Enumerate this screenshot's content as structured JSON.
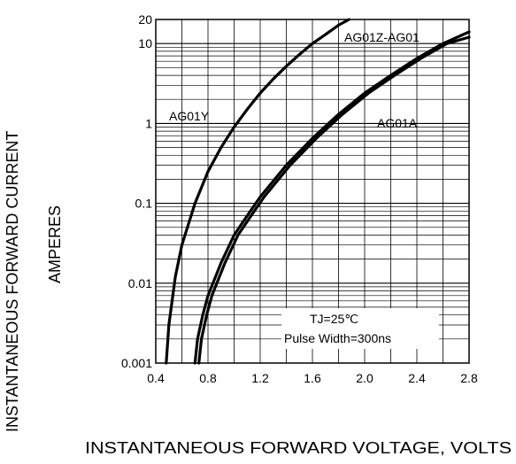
{
  "chart_data": {
    "type": "line",
    "title": "",
    "xlabel": "INSTANTANEOUS FORWARD VOLTAGE,  VOLTS",
    "ylabel": "INSTANTANEOUS FORWARD CURRENT",
    "ylabel2": "AMPERES",
    "xlim": [
      0.4,
      2.8
    ],
    "ylim": [
      0.001,
      20
    ],
    "yscale": "log",
    "grid": true,
    "xticks": [
      "0.4",
      "0.8",
      "1.2",
      "1.6",
      "2.0",
      "2.4",
      "2.8"
    ],
    "yticks": [
      "0.001",
      "0.01",
      "0.1",
      "1",
      "10",
      "20"
    ],
    "series": [
      {
        "name": "AG01Y",
        "x": [
          0.48,
          0.5,
          0.55,
          0.6,
          0.7,
          0.8,
          0.9,
          1.0,
          1.1,
          1.2,
          1.3,
          1.4,
          1.5,
          1.6,
          1.7,
          1.8,
          1.88
        ],
        "y": [
          0.001,
          0.003,
          0.012,
          0.03,
          0.1,
          0.25,
          0.5,
          0.9,
          1.5,
          2.4,
          3.6,
          5.2,
          7.3,
          10,
          13,
          17,
          20
        ]
      },
      {
        "name": "AG01Z-AG01",
        "x": [
          0.7,
          0.72,
          0.76,
          0.8,
          0.9,
          1.0,
          1.1,
          1.2,
          1.4,
          1.6,
          1.8,
          2.0,
          2.2,
          2.4,
          2.6,
          2.8
        ],
        "y": [
          0.001,
          0.002,
          0.004,
          0.007,
          0.018,
          0.04,
          0.07,
          0.12,
          0.3,
          0.65,
          1.3,
          2.4,
          4.0,
          6.5,
          10,
          14
        ]
      },
      {
        "name": "AG01A",
        "x": [
          0.73,
          0.75,
          0.79,
          0.83,
          0.93,
          1.03,
          1.13,
          1.23,
          1.43,
          1.63,
          1.83,
          2.03,
          2.23,
          2.43,
          2.63,
          2.8
        ],
        "y": [
          0.001,
          0.002,
          0.004,
          0.007,
          0.018,
          0.04,
          0.07,
          0.12,
          0.3,
          0.65,
          1.3,
          2.4,
          4.0,
          6.5,
          10,
          12
        ]
      }
    ],
    "annotations": [
      "AG01Y",
      "AG01Z-AG01",
      "AG01A",
      "TJ=25℃",
      "Pulse Width=300ns"
    ]
  }
}
